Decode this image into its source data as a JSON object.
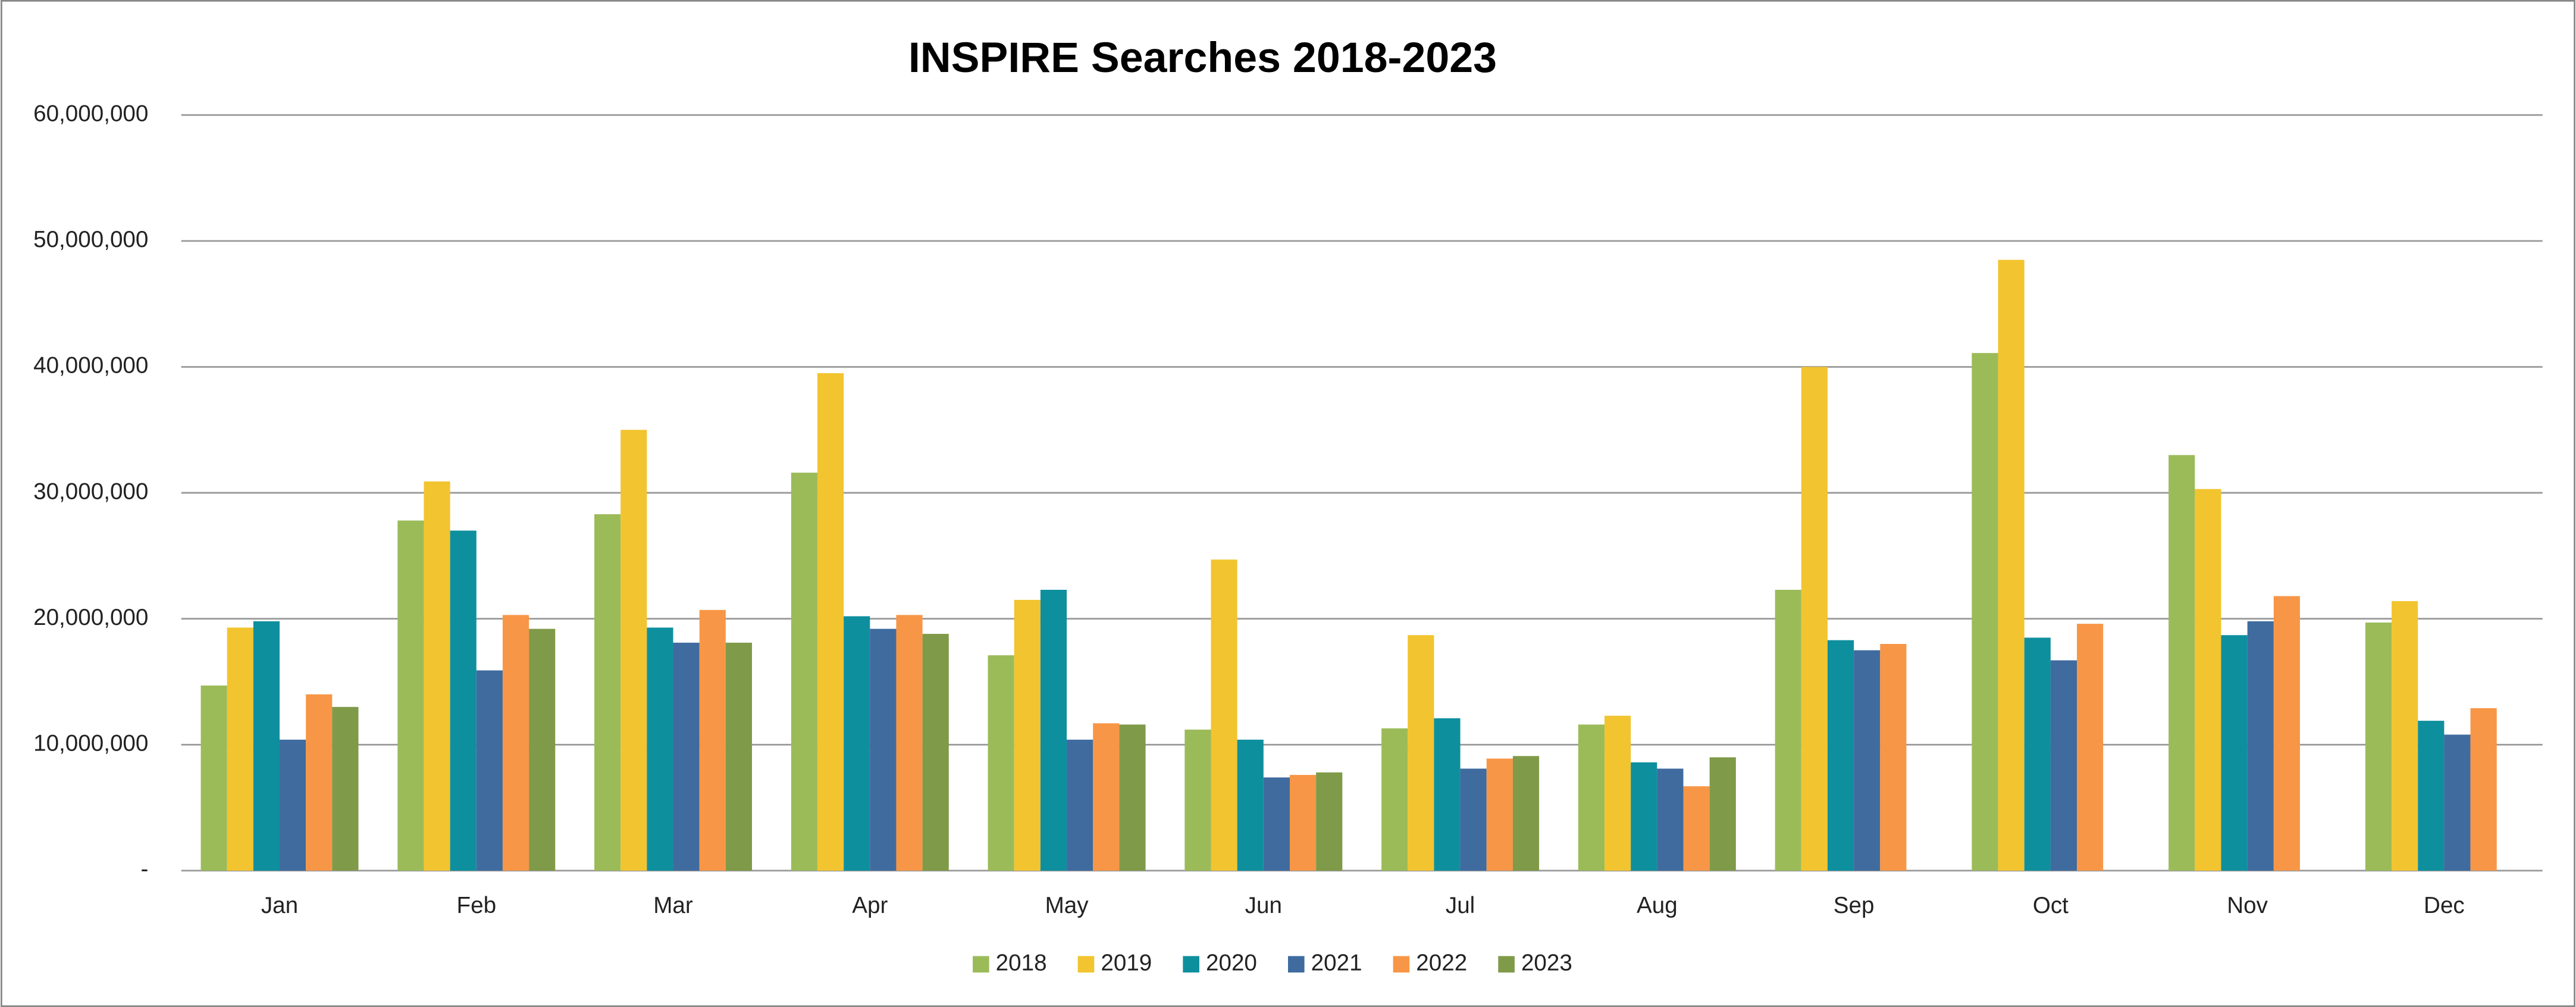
{
  "chart_data": {
    "type": "bar",
    "title": "INSPIRE Searches 2018-2023",
    "categories": [
      "Jan",
      "Feb",
      "Mar",
      "Apr",
      "May",
      "Jun",
      "Jul",
      "Aug",
      "Sep",
      "Oct",
      "Nov",
      "Dec"
    ],
    "series": [
      {
        "name": "2018",
        "color": "#9bbb59",
        "values": [
          14700000,
          27800000,
          28300000,
          31600000,
          17100000,
          11200000,
          11300000,
          11600000,
          22300000,
          41100000,
          33000000,
          19700000
        ]
      },
      {
        "name": "2019",
        "color": "#f2c42f",
        "values": [
          19300000,
          30900000,
          35000000,
          39500000,
          21500000,
          24700000,
          18700000,
          12300000,
          40000000,
          48500000,
          30300000,
          21400000
        ]
      },
      {
        "name": "2020",
        "color": "#0e8f9e",
        "values": [
          19800000,
          27000000,
          19300000,
          20200000,
          22300000,
          10400000,
          12100000,
          8600000,
          18300000,
          18500000,
          18700000,
          11900000
        ]
      },
      {
        "name": "2021",
        "color": "#3f6b9f",
        "values": [
          10400000,
          15900000,
          18100000,
          19200000,
          10400000,
          7400000,
          8100000,
          8100000,
          17500000,
          16700000,
          19800000,
          10800000
        ]
      },
      {
        "name": "2022",
        "color": "#f79646",
        "values": [
          14000000,
          20300000,
          20700000,
          20300000,
          11700000,
          7600000,
          8900000,
          6700000,
          18000000,
          19600000,
          21800000,
          12900000
        ]
      },
      {
        "name": "2023",
        "color": "#7f9a48",
        "values": [
          13000000,
          19200000,
          18100000,
          18800000,
          11600000,
          7800000,
          9100000,
          9000000,
          null,
          null,
          null,
          null
        ]
      }
    ],
    "ylim": [
      0,
      60000000
    ],
    "yticks": [
      {
        "value": 0,
        "label": "-"
      },
      {
        "value": 10000000,
        "label": "10,000,000"
      },
      {
        "value": 20000000,
        "label": "20,000,000"
      },
      {
        "value": 30000000,
        "label": "30,000,000"
      },
      {
        "value": 40000000,
        "label": "40,000,000"
      },
      {
        "value": 50000000,
        "label": "50,000,000"
      },
      {
        "value": 60000000,
        "label": "60,000,000"
      }
    ],
    "grid": true,
    "legend": "bottom"
  }
}
